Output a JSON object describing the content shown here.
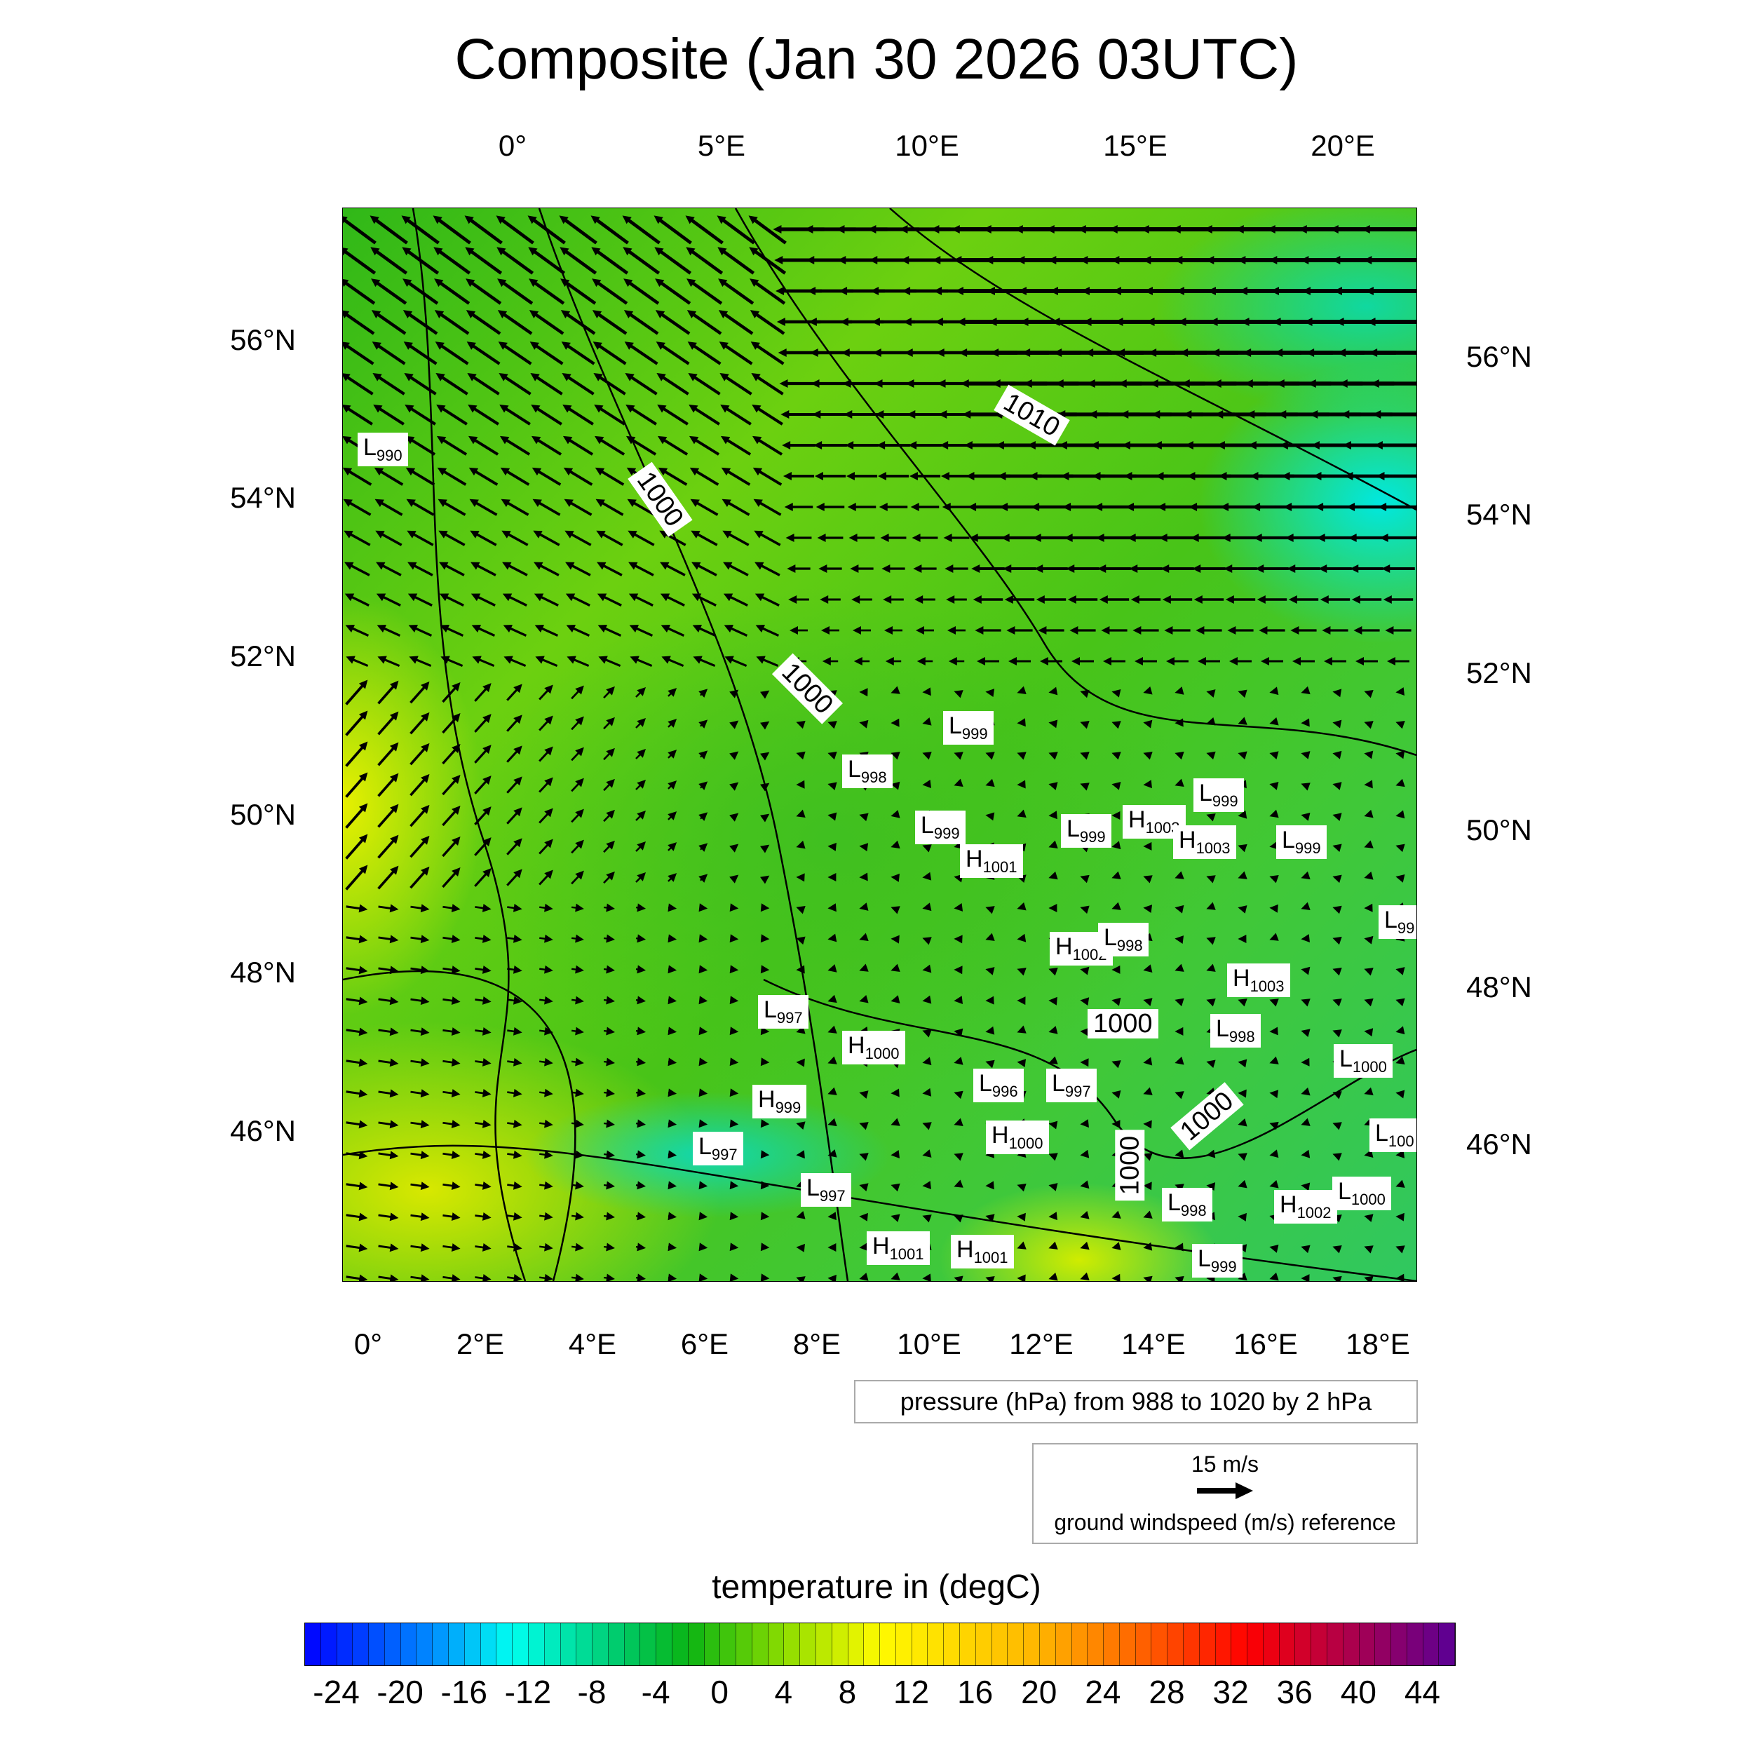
{
  "title": "Composite (Jan 30 2026 03UTC)",
  "chart_data": {
    "type": "map",
    "title": "Composite (Jan 30 2026 03UTC)",
    "fill_variable": "temperature in (degC)",
    "colorbar": {
      "min": -26,
      "max": 46,
      "step": 1,
      "tick_labels": [
        "-24",
        "-20",
        "-16",
        "-12",
        "-8",
        "-4",
        "0",
        "4",
        "8",
        "12",
        "16",
        "20",
        "24",
        "28",
        "32",
        "36",
        "40",
        "44"
      ]
    },
    "top_axis_labels": [
      "0°",
      "5°E",
      "10°E",
      "15°E",
      "20°E"
    ],
    "bottom_axis_labels": [
      "0°",
      "2°E",
      "4°E",
      "6°E",
      "8°E",
      "10°E",
      "12°E",
      "14°E",
      "16°E",
      "18°E"
    ],
    "left_axis_labels": [
      "56°N",
      "54°N",
      "52°N",
      "50°N",
      "48°N",
      "46°N"
    ],
    "right_axis_labels": [
      "56°N",
      "54°N",
      "52°N",
      "50°N",
      "48°N",
      "46°N"
    ],
    "contour_labels": [
      "1000",
      "1000",
      "1010",
      "1000",
      "1000",
      "1000"
    ],
    "pressure_centers": [
      {
        "t": "L",
        "v": "990"
      },
      {
        "t": "L",
        "v": "999"
      },
      {
        "t": "L",
        "v": "998"
      },
      {
        "t": "L",
        "v": "999"
      },
      {
        "t": "H",
        "v": "1001"
      },
      {
        "t": "L",
        "v": "999"
      },
      {
        "t": "H",
        "v": "1003"
      },
      {
        "t": "H",
        "v": "1003"
      },
      {
        "t": "L",
        "v": "999"
      },
      {
        "t": "L",
        "v": "999"
      },
      {
        "t": "L",
        "v": "99"
      },
      {
        "t": "H",
        "v": "1002"
      },
      {
        "t": "L",
        "v": "998"
      },
      {
        "t": "H",
        "v": "1003"
      },
      {
        "t": "L",
        "v": "997"
      },
      {
        "t": "H",
        "v": "1000"
      },
      {
        "t": "L",
        "v": "998"
      },
      {
        "t": "L",
        "v": "1000"
      },
      {
        "t": "L",
        "v": "996"
      },
      {
        "t": "L",
        "v": "997"
      },
      {
        "t": "H",
        "v": "999"
      },
      {
        "t": "H",
        "v": "1000"
      },
      {
        "t": "L",
        "v": "100"
      },
      {
        "t": "L",
        "v": "997"
      },
      {
        "t": "L",
        "v": "997"
      },
      {
        "t": "L",
        "v": "998"
      },
      {
        "t": "H",
        "v": "1002"
      },
      {
        "t": "L",
        "v": "1000"
      },
      {
        "t": "H",
        "v": "1001"
      },
      {
        "t": "H",
        "v": "1001"
      },
      {
        "t": "L",
        "v": "999"
      }
    ],
    "contour_legend": "pressure (hPa) from 988 to 1020 by 2 hPa",
    "vector_reference": {
      "speed": "15 m/s",
      "label": "ground windspeed (m/s) reference"
    }
  }
}
